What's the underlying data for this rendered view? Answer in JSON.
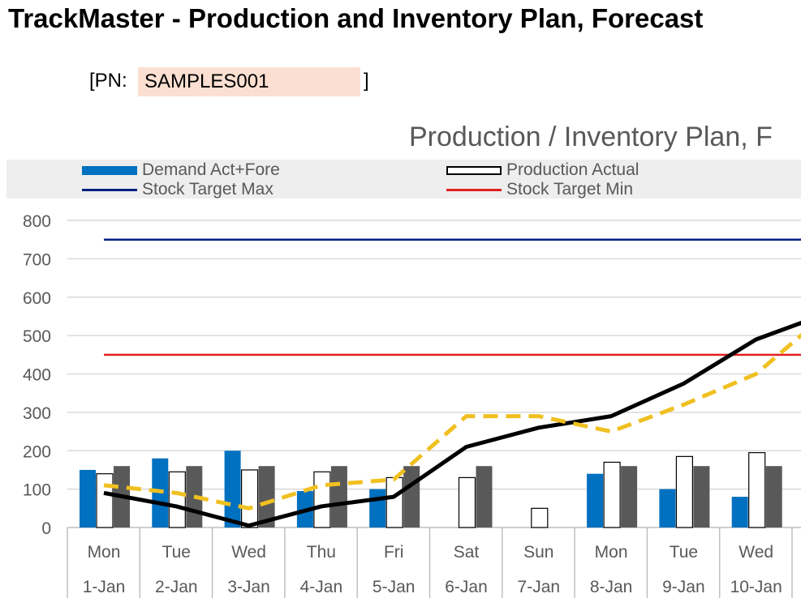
{
  "header": {
    "title": "TrackMaster - Production and Inventory Plan, Forecast",
    "pn_open": "[PN:",
    "pn_value": "SAMPLES001",
    "pn_close": "]"
  },
  "chart_data": {
    "type": "bar",
    "title": "Production / Inventory Plan, F",
    "legend": [
      {
        "label": "Demand Act+Fore",
        "color": "#0070c0",
        "kind": "bar"
      },
      {
        "label": "Production Actual",
        "color": "#ffffff",
        "kind": "bar-outline"
      },
      {
        "label": "Stock Target Max",
        "color": "#002080",
        "kind": "line"
      },
      {
        "label": "Stock Target Min",
        "color": "#e02020",
        "kind": "line"
      }
    ],
    "legend_placement": "top",
    "ylim": [
      0,
      800
    ],
    "yticks": [
      "800",
      "700",
      "600",
      "500",
      "400",
      "300",
      "200",
      "100",
      "0"
    ],
    "categories_day": [
      "Mon",
      "Tue",
      "Wed",
      "Thu",
      "Fri",
      "Sat",
      "Sun",
      "Mon",
      "Tue",
      "Wed"
    ],
    "categories_date": [
      "1-Jan",
      "2-Jan",
      "3-Jan",
      "4-Jan",
      "5-Jan",
      "6-Jan",
      "7-Jan",
      "8-Jan",
      "9-Jan",
      "10-Jan"
    ],
    "series": [
      {
        "name": "Demand Act+Fore",
        "kind": "bar",
        "color": "#0070c0",
        "values": [
          150,
          180,
          200,
          95,
          100,
          0,
          0,
          140,
          100,
          80
        ]
      },
      {
        "name": "Production Actual",
        "kind": "bar-outline",
        "color": "#ffffff",
        "values": [
          140,
          145,
          150,
          145,
          130,
          130,
          50,
          170,
          185,
          195
        ]
      },
      {
        "kind": "bar",
        "color": "#595959",
        "values": [
          160,
          160,
          160,
          160,
          160,
          160,
          0,
          160,
          160,
          160
        ]
      },
      {
        "kind": "line",
        "color": "#000000",
        "dash": false,
        "values": [
          90,
          55,
          5,
          55,
          80,
          210,
          260,
          290,
          375,
          490
        ],
        "end_value": 535
      },
      {
        "kind": "line",
        "color": "#f0c020",
        "dash": true,
        "values": [
          110,
          90,
          50,
          110,
          125,
          290,
          290,
          250,
          320,
          400
        ],
        "end_value": 505
      },
      {
        "name": "Stock Target Max",
        "kind": "hline",
        "color": "#002080",
        "value": 750
      },
      {
        "name": "Stock Target Min",
        "kind": "hline",
        "color": "#e02020",
        "value": 450
      }
    ],
    "grid": true
  }
}
